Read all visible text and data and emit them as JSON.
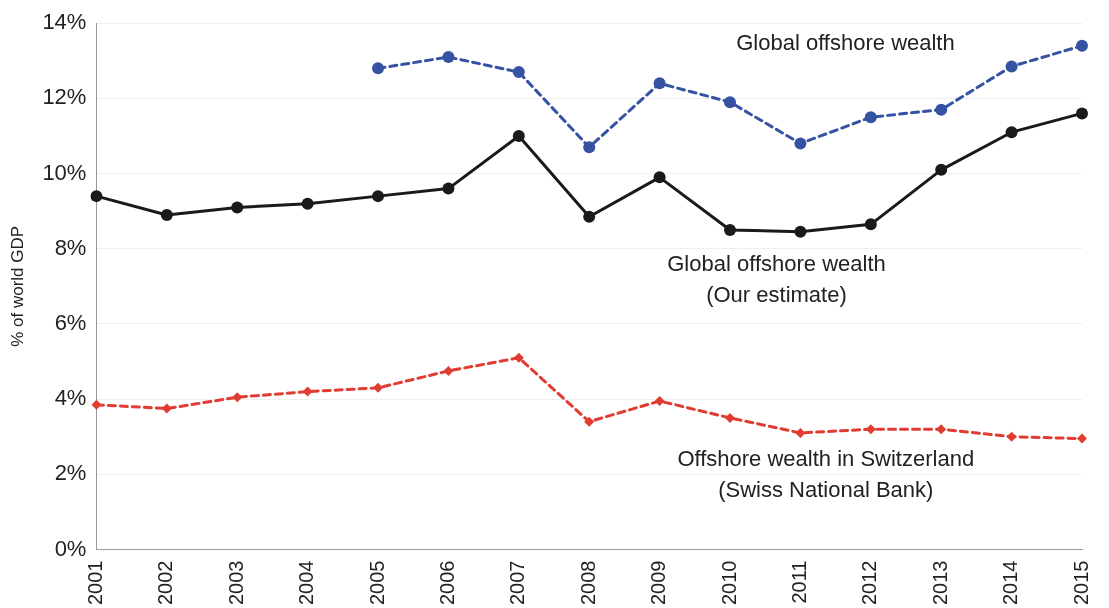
{
  "chart_data": {
    "type": "line",
    "categories": [
      "2001",
      "2002",
      "2003",
      "2004",
      "2005",
      "2006",
      "2007",
      "2008",
      "2009",
      "2010",
      "2011",
      "2012",
      "2013",
      "2014",
      "2015"
    ],
    "ylabel": "% of world GDP",
    "ylim": [
      0,
      14
    ],
    "yticks": [
      {
        "value": 0,
        "label": "0%"
      },
      {
        "value": 2,
        "label": "2%"
      },
      {
        "value": 4,
        "label": "4%"
      },
      {
        "value": 6,
        "label": "6%"
      },
      {
        "value": 8,
        "label": "8%"
      },
      {
        "value": 10,
        "label": "10%"
      },
      {
        "value": 12,
        "label": "12%"
      },
      {
        "value": 14,
        "label": "14%"
      }
    ],
    "grid": "y",
    "legend": false,
    "series": [
      {
        "name": "Global offshore wealth",
        "color": "#3653a3",
        "marker": "circle",
        "line_style": "dashed",
        "values": [
          null,
          null,
          null,
          null,
          12.8,
          13.1,
          12.7,
          10.7,
          12.4,
          11.9,
          10.8,
          11.5,
          11.7,
          12.85,
          13.4
        ]
      },
      {
        "name": "Global offshore wealth (Our estimate)",
        "color": "#1a1a1a",
        "marker": "circle",
        "line_style": "solid",
        "values": [
          9.4,
          8.9,
          9.1,
          9.2,
          9.4,
          9.6,
          11.0,
          8.85,
          9.9,
          8.5,
          8.45,
          8.65,
          10.1,
          11.1,
          11.6
        ]
      },
      {
        "name": "Offshore wealth in Switzerland (Swiss National Bank)",
        "color": "#e03c31",
        "marker": "diamond",
        "line_style": "dashed",
        "values": [
          3.85,
          3.75,
          4.05,
          4.2,
          4.3,
          4.75,
          5.1,
          3.4,
          3.95,
          3.5,
          3.1,
          3.2,
          3.2,
          3.0,
          2.95
        ]
      }
    ]
  }
}
